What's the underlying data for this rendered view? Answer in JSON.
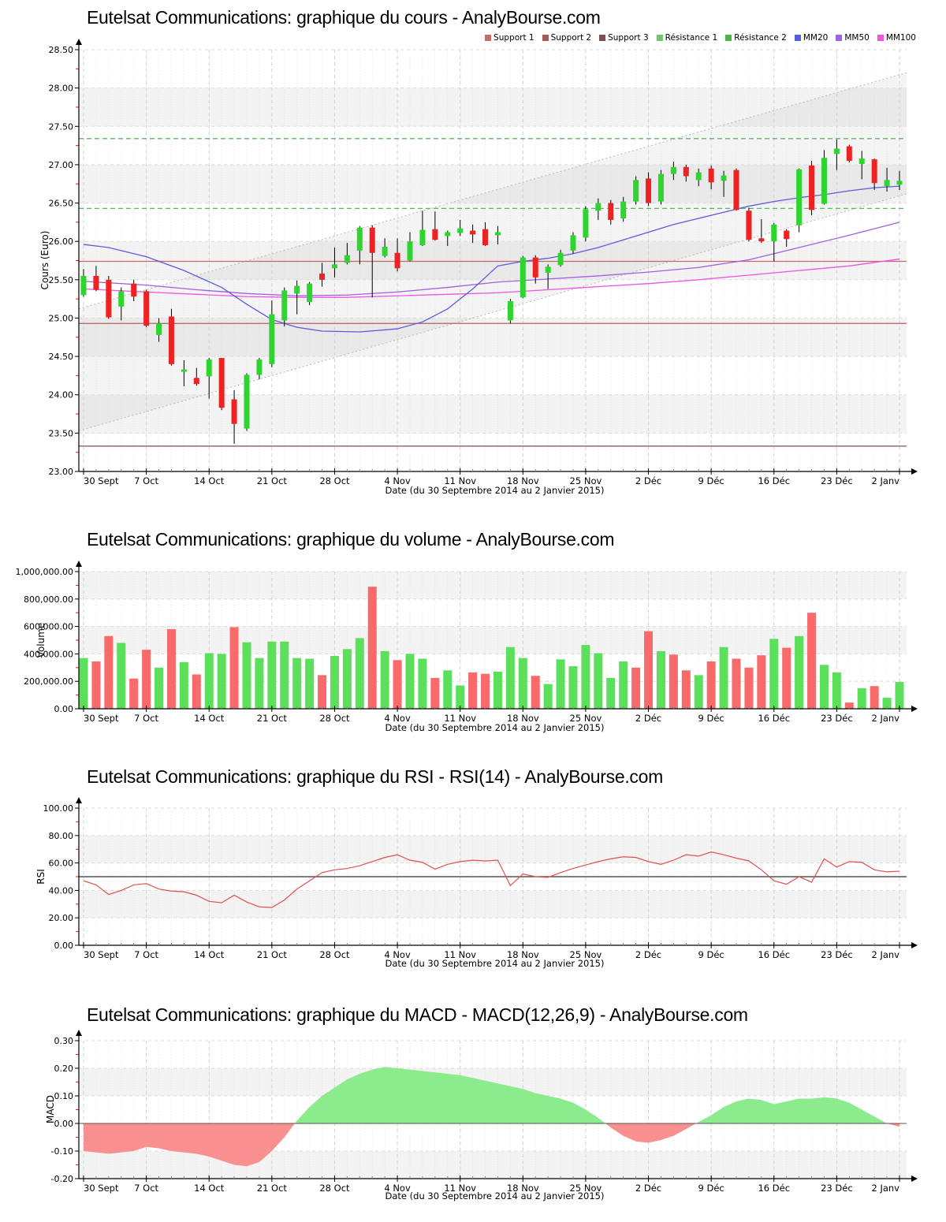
{
  "site": "AnalyBourse.com",
  "x_axis": {
    "caption": "Date (du 30 Septembre 2014 au 2 Janvier 2015)",
    "tick_labels": [
      "30 Sept",
      "7 Oct",
      "14 Oct",
      "21 Oct",
      "28 Oct",
      "4 Nov",
      "11 Nov",
      "18 Nov",
      "25 Nov",
      "2 Déc",
      "9 Déc",
      "16 Déc",
      "23 Déc",
      "2 Janv"
    ],
    "tick_indices": [
      0,
      5,
      10,
      15,
      20,
      25,
      30,
      35,
      40,
      45,
      50,
      55,
      60,
      65
    ]
  },
  "chart_data": [
    {
      "id": "price",
      "type": "candlestick",
      "title": "Eutelsat Communications: graphique du cours - AnalyBourse.com",
      "ylabel": "Cours (Euro)",
      "xlabel": "Date (du 30 Septembre 2014 au 2 Janvier 2015)",
      "ylim": [
        23.0,
        28.5
      ],
      "ytick_labels": [
        "28.50",
        "28.00",
        "27.50",
        "27.00",
        "26.50",
        "26.00",
        "25.50",
        "25.00",
        "24.50",
        "24.00",
        "23.50",
        "23.00"
      ],
      "yticks": [
        28.5,
        28.0,
        27.5,
        27.0,
        26.5,
        26.0,
        25.5,
        25.0,
        24.5,
        24.0,
        23.5,
        23.0
      ],
      "gray_bands": [
        [
          27.5,
          28.0
        ],
        [
          26.5,
          27.0
        ],
        [
          25.5,
          26.0
        ],
        [
          24.5,
          25.0
        ],
        [
          23.5,
          24.0
        ]
      ],
      "legend": [
        {
          "label": "Support 1",
          "color": "#c56a6a"
        },
        {
          "label": "Support 2",
          "color": "#a85858"
        },
        {
          "label": "Support 3",
          "color": "#7e4f4f"
        },
        {
          "label": "Résistance 1",
          "color": "#6cc96c"
        },
        {
          "label": "Résistance 2",
          "color": "#4db34d"
        },
        {
          "label": "MM20",
          "color": "#5b5be0"
        },
        {
          "label": "MM50",
          "color": "#a060e0"
        },
        {
          "label": "MM100",
          "color": "#ee55e0"
        }
      ],
      "levels": [
        {
          "name": "resistance-1",
          "value": 27.34,
          "color": "#5cb85c",
          "dashed": true
        },
        {
          "name": "resistance-2",
          "value": 26.43,
          "color": "#5cb85c",
          "dashed": true
        },
        {
          "name": "support-1",
          "value": 25.74,
          "color": "#c56a6a",
          "dashed": false
        },
        {
          "name": "support-2",
          "value": 24.93,
          "color": "#b25f5f",
          "dashed": false
        },
        {
          "name": "support-3",
          "value": 23.33,
          "color": "#7e4f4f",
          "dashed": false
        }
      ],
      "channel": {
        "upper": [
          25.12,
          28.2
        ],
        "lower": [
          23.53,
          26.62
        ]
      },
      "candles_ohlc": [
        [
          25.3,
          25.64,
          25.28,
          25.55
        ],
        [
          25.55,
          25.68,
          25.35,
          25.37
        ],
        [
          25.5,
          25.55,
          24.99,
          25.01
        ],
        [
          25.15,
          25.4,
          24.97,
          25.35
        ],
        [
          25.45,
          25.5,
          25.22,
          25.28
        ],
        [
          25.35,
          25.37,
          24.88,
          24.9
        ],
        [
          24.78,
          25.0,
          24.69,
          24.93
        ],
        [
          25.02,
          25.12,
          24.38,
          24.4
        ],
        [
          24.3,
          24.45,
          24.11,
          24.33
        ],
        [
          24.22,
          24.35,
          24.12,
          24.14
        ],
        [
          24.24,
          24.48,
          23.95,
          24.46
        ],
        [
          24.48,
          24.48,
          23.8,
          23.83
        ],
        [
          23.94,
          24.06,
          23.36,
          23.62
        ],
        [
          23.56,
          24.28,
          23.53,
          24.26
        ],
        [
          24.26,
          24.48,
          24.2,
          24.46
        ],
        [
          24.4,
          25.23,
          24.36,
          25.05
        ],
        [
          24.97,
          25.4,
          24.89,
          25.36
        ],
        [
          25.32,
          25.49,
          25.05,
          25.42
        ],
        [
          25.21,
          25.47,
          25.17,
          25.45
        ],
        [
          25.58,
          25.72,
          25.41,
          25.5
        ],
        [
          25.65,
          25.92,
          25.53,
          25.7
        ],
        [
          25.72,
          25.98,
          25.7,
          25.82
        ],
        [
          25.88,
          26.2,
          25.7,
          26.18
        ],
        [
          26.18,
          26.21,
          25.27,
          25.85
        ],
        [
          25.81,
          26.04,
          25.79,
          25.93
        ],
        [
          25.85,
          26.04,
          25.61,
          25.65
        ],
        [
          25.75,
          26.12,
          25.74,
          26.0
        ],
        [
          25.95,
          26.4,
          25.94,
          26.15
        ],
        [
          26.16,
          26.39,
          26.01,
          26.02
        ],
        [
          26.07,
          26.14,
          25.94,
          26.12
        ],
        [
          26.11,
          26.28,
          26.07,
          26.17
        ],
        [
          26.14,
          26.22,
          25.98,
          26.09
        ],
        [
          26.16,
          26.25,
          25.94,
          25.95
        ],
        [
          26.08,
          26.2,
          25.96,
          26.12
        ],
        [
          24.97,
          25.25,
          24.93,
          25.22
        ],
        [
          25.27,
          25.81,
          25.26,
          25.79
        ],
        [
          25.79,
          25.82,
          25.45,
          25.53
        ],
        [
          25.59,
          25.7,
          25.38,
          25.67
        ],
        [
          25.69,
          25.89,
          25.67,
          25.85
        ],
        [
          25.88,
          26.12,
          25.84,
          26.08
        ],
        [
          26.05,
          26.46,
          26.0,
          26.42
        ],
        [
          26.4,
          26.56,
          26.28,
          26.5
        ],
        [
          26.5,
          26.54,
          26.22,
          26.28
        ],
        [
          26.3,
          26.58,
          26.26,
          26.52
        ],
        [
          26.52,
          26.85,
          26.48,
          26.8
        ],
        [
          26.82,
          26.9,
          26.46,
          26.5
        ],
        [
          26.52,
          26.93,
          26.48,
          26.88
        ],
        [
          26.88,
          27.04,
          26.8,
          26.97
        ],
        [
          26.97,
          27.0,
          26.78,
          26.85
        ],
        [
          26.8,
          26.95,
          26.72,
          26.9
        ],
        [
          26.95,
          26.99,
          26.68,
          26.77
        ],
        [
          26.79,
          26.92,
          26.58,
          26.86
        ],
        [
          26.93,
          26.95,
          26.4,
          26.41
        ],
        [
          26.4,
          26.44,
          26.0,
          26.02
        ],
        [
          26.04,
          26.29,
          25.98,
          26.0
        ],
        [
          26.0,
          26.24,
          25.74,
          26.22
        ],
        [
          26.14,
          26.16,
          25.93,
          26.03
        ],
        [
          26.21,
          26.95,
          26.12,
          26.94
        ],
        [
          26.99,
          27.05,
          26.34,
          26.41
        ],
        [
          26.49,
          27.19,
          26.48,
          27.09
        ],
        [
          27.14,
          27.33,
          26.93,
          27.21
        ],
        [
          27.24,
          27.26,
          27.03,
          27.05
        ],
        [
          27.01,
          27.18,
          26.81,
          27.08
        ],
        [
          27.07,
          27.08,
          26.67,
          26.76
        ],
        [
          26.72,
          26.96,
          26.65,
          26.8
        ],
        [
          26.74,
          26.92,
          26.67,
          26.79
        ]
      ],
      "up_color": "#2ed52e",
      "down_color": "#ee2222",
      "mm20": [
        [
          0,
          25.96
        ],
        [
          2,
          25.92
        ],
        [
          5,
          25.8
        ],
        [
          8,
          25.62
        ],
        [
          11,
          25.4
        ],
        [
          13,
          25.18
        ],
        [
          15,
          24.98
        ],
        [
          17,
          24.88
        ],
        [
          19,
          24.83
        ],
        [
          22,
          24.82
        ],
        [
          25,
          24.86
        ],
        [
          27,
          24.95
        ],
        [
          29,
          25.12
        ],
        [
          31,
          25.38
        ],
        [
          33,
          25.68
        ],
        [
          35,
          25.74
        ],
        [
          37,
          25.78
        ],
        [
          39,
          25.84
        ],
        [
          41,
          25.92
        ],
        [
          43,
          26.02
        ],
        [
          45,
          26.12
        ],
        [
          47,
          26.22
        ],
        [
          49,
          26.3
        ],
        [
          51,
          26.38
        ],
        [
          53,
          26.46
        ],
        [
          55,
          26.52
        ],
        [
          57,
          26.57
        ],
        [
          59,
          26.61
        ],
        [
          61,
          26.66
        ],
        [
          63,
          26.7
        ],
        [
          65,
          26.72
        ]
      ],
      "mm50": [
        [
          0,
          25.48
        ],
        [
          5,
          25.43
        ],
        [
          9,
          25.37
        ],
        [
          13,
          25.32
        ],
        [
          17,
          25.29
        ],
        [
          21,
          25.3
        ],
        [
          25,
          25.34
        ],
        [
          29,
          25.4
        ],
        [
          33,
          25.47
        ],
        [
          37,
          25.51
        ],
        [
          41,
          25.55
        ],
        [
          45,
          25.6
        ],
        [
          49,
          25.66
        ],
        [
          53,
          25.76
        ],
        [
          57,
          25.92
        ],
        [
          61,
          26.08
        ],
        [
          65,
          26.25
        ]
      ],
      "mm100": [
        [
          0,
          25.38
        ],
        [
          5,
          25.34
        ],
        [
          9,
          25.31
        ],
        [
          13,
          25.28
        ],
        [
          17,
          25.27
        ],
        [
          21,
          25.27
        ],
        [
          25,
          25.29
        ],
        [
          29,
          25.31
        ],
        [
          33,
          25.33
        ],
        [
          37,
          25.37
        ],
        [
          41,
          25.41
        ],
        [
          45,
          25.45
        ],
        [
          49,
          25.5
        ],
        [
          53,
          25.56
        ],
        [
          57,
          25.62
        ],
        [
          61,
          25.68
        ],
        [
          65,
          25.77
        ]
      ]
    },
    {
      "id": "volume",
      "type": "bar",
      "title": "Eutelsat Communications: graphique du volume - AnalyBourse.com",
      "ylabel": "Volume",
      "xlabel": "Date (du 30 Septembre 2014 au 2 Janvier 2015)",
      "ylim": [
        0,
        1000000
      ],
      "ytick_labels": [
        "1,000,000.00",
        "800,000.00",
        "600,000.00",
        "400,000.00",
        "200,000.00",
        "0.00"
      ],
      "yticks": [
        1000000,
        800000,
        600000,
        400000,
        200000,
        0
      ],
      "gray_bands": [
        [
          400000,
          600000
        ],
        [
          800000,
          1000000
        ]
      ],
      "up_color": "#5ce05c",
      "down_color": "#f96a6a",
      "values": [
        370000,
        345000,
        530000,
        480000,
        220000,
        430000,
        300000,
        580000,
        340000,
        250000,
        405000,
        400000,
        595000,
        485000,
        370000,
        490000,
        490000,
        370000,
        365000,
        245000,
        385000,
        435000,
        515000,
        890000,
        420000,
        355000,
        400000,
        365000,
        225000,
        280000,
        170000,
        265000,
        255000,
        270000,
        450000,
        370000,
        240000,
        180000,
        360000,
        310000,
        465000,
        405000,
        225000,
        345000,
        300000,
        565000,
        420000,
        395000,
        280000,
        245000,
        345000,
        450000,
        365000,
        300000,
        390000,
        510000,
        445000,
        530000,
        700000,
        320000,
        265000,
        45000,
        150000,
        165000,
        80000,
        195000
      ],
      "colors": [
        "g",
        "r",
        "r",
        "g",
        "r",
        "r",
        "g",
        "r",
        "g",
        "r",
        "g",
        "g",
        "r",
        "g",
        "g",
        "g",
        "g",
        "g",
        "g",
        "r",
        "g",
        "g",
        "g",
        "r",
        "g",
        "r",
        "g",
        "g",
        "r",
        "g",
        "g",
        "r",
        "r",
        "g",
        "g",
        "g",
        "r",
        "g",
        "g",
        "g",
        "g",
        "g",
        "g",
        "g",
        "r",
        "r",
        "g",
        "r",
        "r",
        "g",
        "r",
        "g",
        "r",
        "r",
        "r",
        "g",
        "r",
        "g",
        "r",
        "g",
        "g",
        "r",
        "g",
        "r",
        "g",
        "g"
      ]
    },
    {
      "id": "rsi",
      "type": "line",
      "title": "Eutelsat Communications: graphique du RSI - RSI(14) - AnalyBourse.com",
      "ylabel": "RSI",
      "xlabel": "Date (du 30 Septembre 2014 au 2 Janvier 2015)",
      "ylim": [
        0,
        100
      ],
      "ytick_labels": [
        "100.00",
        "80.00",
        "60.00",
        "40.00",
        "20.00",
        "0.00"
      ],
      "yticks": [
        100,
        80,
        60,
        40,
        20,
        0
      ],
      "gray_bands": [
        [
          20,
          40
        ],
        [
          60,
          80
        ]
      ],
      "line_color": "#e05050",
      "midline": 50,
      "values": [
        47,
        44,
        37,
        40,
        44,
        45,
        41,
        39.5,
        39,
        36.5,
        32,
        31,
        36.5,
        31.5,
        28,
        27.5,
        33,
        41,
        47,
        53,
        55,
        56,
        58,
        61,
        64,
        66,
        62,
        60.5,
        55.5,
        59,
        61,
        62,
        61.5,
        62,
        43.5,
        52,
        50,
        49.5,
        53,
        56,
        58.5,
        61,
        63,
        64.5,
        64,
        61,
        59,
        62,
        66,
        65,
        68,
        66,
        63.5,
        61.5,
        55,
        47,
        44.5,
        50,
        46,
        63,
        57,
        61,
        60.5,
        55,
        53.5,
        54
      ]
    },
    {
      "id": "macd",
      "type": "area",
      "title": "Eutelsat Communications: graphique du MACD - MACD(12,26,9) - AnalyBourse.com",
      "ylabel": "MACD",
      "xlabel": "Date (du 30 Septembre 2014 au 2 Janvier 2015)",
      "ylim": [
        -0.2,
        0.3
      ],
      "ytick_labels": [
        "0.30",
        "0.20",
        "0.10",
        "0.00",
        "-0.10",
        "-0.20"
      ],
      "yticks": [
        0.3,
        0.2,
        0.1,
        0.0,
        -0.1,
        -0.2
      ],
      "gray_bands": [
        [
          0.1,
          0.2
        ],
        [
          -0.2,
          -0.1
        ]
      ],
      "pos_color": "#8ceb8c",
      "neg_color": "#f99090",
      "values": [
        -0.1,
        -0.105,
        -0.11,
        -0.105,
        -0.1,
        -0.085,
        -0.09,
        -0.1,
        -0.105,
        -0.11,
        -0.12,
        -0.135,
        -0.15,
        -0.155,
        -0.14,
        -0.1,
        -0.05,
        0.01,
        0.06,
        0.1,
        0.13,
        0.16,
        0.18,
        0.195,
        0.205,
        0.2,
        0.195,
        0.19,
        0.185,
        0.18,
        0.175,
        0.165,
        0.155,
        0.145,
        0.135,
        0.125,
        0.11,
        0.1,
        0.09,
        0.075,
        0.05,
        0.02,
        -0.015,
        -0.045,
        -0.065,
        -0.07,
        -0.06,
        -0.045,
        -0.02,
        0.005,
        0.03,
        0.06,
        0.08,
        0.09,
        0.085,
        0.07,
        0.08,
        0.09,
        0.09,
        0.095,
        0.09,
        0.075,
        0.05,
        0.025,
        0.0,
        -0.012
      ]
    }
  ]
}
